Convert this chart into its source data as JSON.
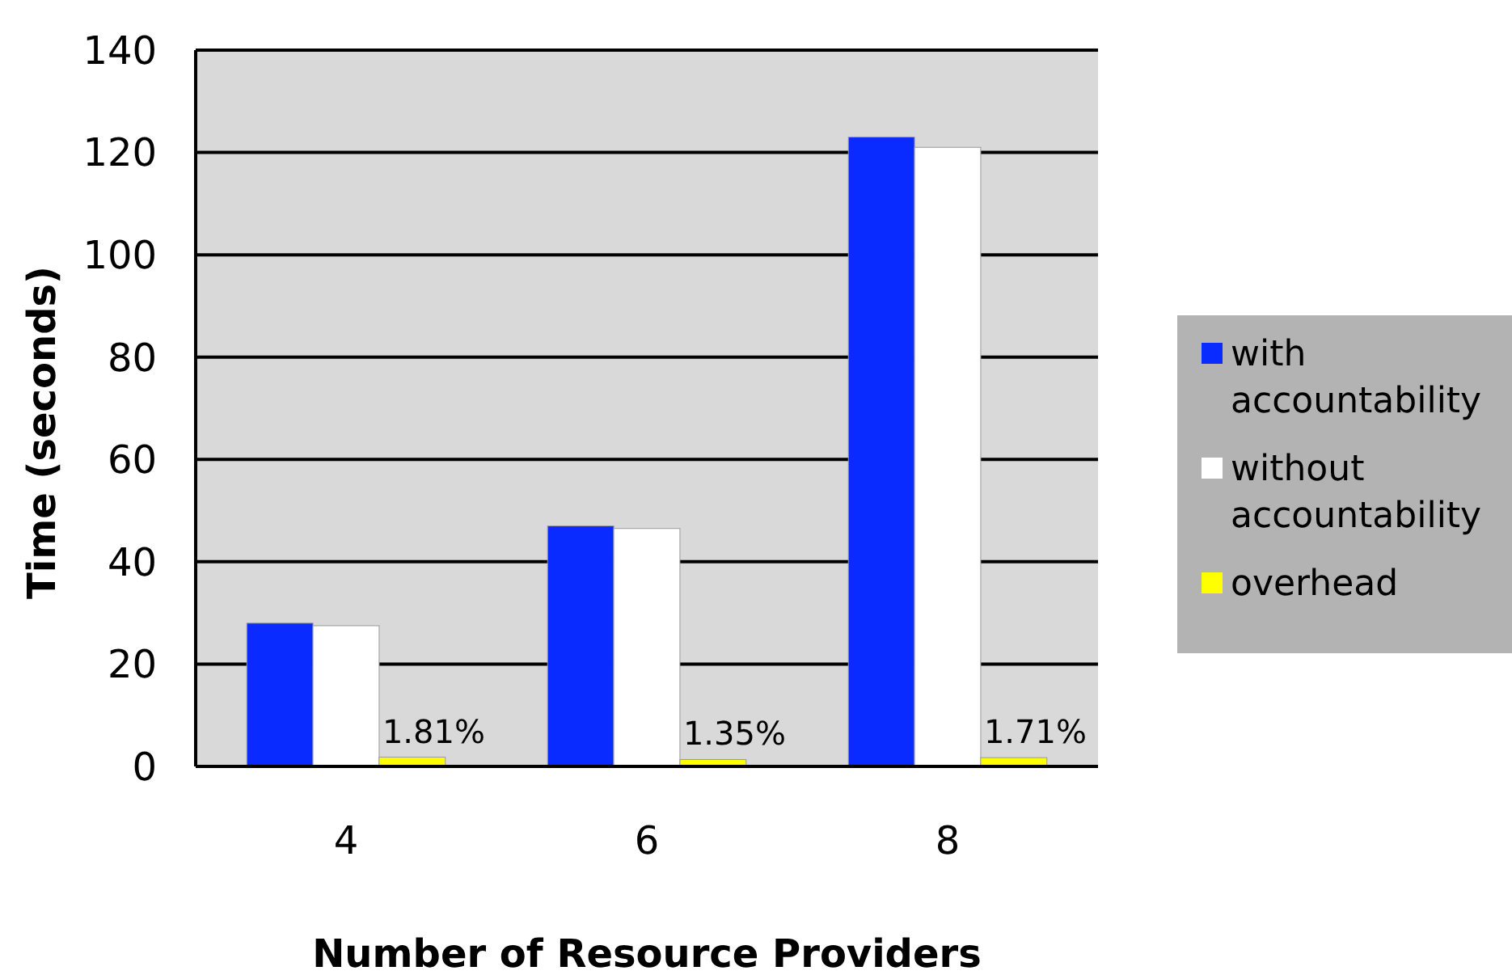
{
  "chart_data": {
    "type": "bar",
    "xlabel": "Number of Resource Providers",
    "ylabel": "Time (seconds)",
    "categories": [
      "4",
      "6",
      "8"
    ],
    "series": [
      {
        "name": "with accountability",
        "color": "#0a2bff",
        "values": [
          28,
          47,
          123
        ]
      },
      {
        "name": "without accountability",
        "color": "#ffffff",
        "values": [
          27.5,
          46.5,
          121
        ]
      },
      {
        "name": "overhead",
        "color": "#ffff00",
        "values": [
          1.81,
          1.35,
          1.71
        ],
        "value_labels": [
          "1.81%",
          "1.35%",
          "1.71%"
        ]
      }
    ],
    "ylim": [
      0,
      140
    ],
    "yticks": [
      0,
      20,
      40,
      60,
      80,
      100,
      120,
      140
    ],
    "grid": "y",
    "legend": "right"
  }
}
